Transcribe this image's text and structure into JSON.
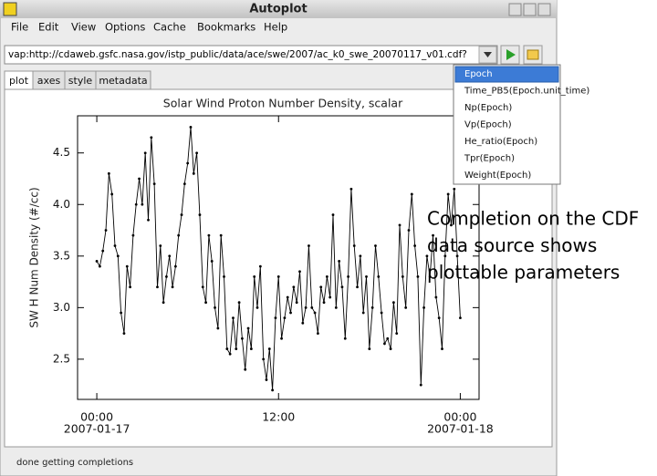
{
  "window": {
    "title": "Autoplot",
    "menu": [
      "File",
      "Edit",
      "View",
      "Options",
      "Cache",
      "Bookmarks",
      "Help"
    ]
  },
  "address": {
    "url": "vap:http://cdaweb.gsfc.nasa.gov/istp_public/data/ace/swe/2007/ac_k0_swe_20070117_v01.cdf?"
  },
  "tabs": [
    "plot",
    "axes",
    "style",
    "metadata"
  ],
  "completions": {
    "items": [
      "Epoch",
      "Time_PB5(Epoch.unit_time)",
      "Np(Epoch)",
      "Vp(Epoch)",
      "He_ratio(Epoch)",
      "Tpr(Epoch)",
      "Weight(Epoch)"
    ],
    "selected": 0
  },
  "chart_data": {
    "type": "line",
    "title": "Solar Wind Proton Number Density, scalar",
    "ylabel": "SW H Num Density (#/cc)",
    "x": [
      0,
      0.2,
      0.4,
      0.6,
      0.8,
      1.0,
      1.2,
      1.4,
      1.6,
      1.8,
      2.0,
      2.2,
      2.4,
      2.6,
      2.8,
      3.0,
      3.2,
      3.4,
      3.6,
      3.8,
      4.0,
      4.2,
      4.4,
      4.6,
      4.8,
      5.0,
      5.2,
      5.4,
      5.6,
      5.8,
      6.0,
      6.2,
      6.4,
      6.6,
      6.8,
      7.0,
      7.2,
      7.4,
      7.6,
      7.8,
      8.0,
      8.2,
      8.4,
      8.6,
      8.8,
      9.0,
      9.2,
      9.4,
      9.6,
      9.8,
      10.0,
      10.2,
      10.4,
      10.6,
      10.8,
      11.0,
      11.2,
      11.4,
      11.6,
      11.8,
      12.0,
      12.2,
      12.4,
      12.6,
      12.8,
      13.0,
      13.2,
      13.4,
      13.6,
      13.8,
      14.0,
      14.2,
      14.4,
      14.6,
      14.8,
      15.0,
      15.2,
      15.4,
      15.6,
      15.8,
      16.0,
      16.2,
      16.4,
      16.6,
      16.8,
      17.0,
      17.2,
      17.4,
      17.6,
      17.8,
      18.0,
      18.2,
      18.4,
      18.6,
      18.8,
      19.0,
      19.2,
      19.4,
      19.6,
      19.8,
      20.0,
      20.2,
      20.4,
      20.6,
      20.8,
      21.0,
      21.2,
      21.4,
      21.6,
      21.8,
      22.0,
      22.2,
      22.4,
      22.6,
      22.8,
      23.0,
      23.2,
      23.4,
      23.6,
      23.8,
      24.0
    ],
    "values": [
      3.45,
      3.4,
      3.55,
      3.75,
      4.3,
      4.1,
      3.6,
      3.5,
      2.95,
      2.75,
      3.4,
      3.2,
      3.7,
      4.0,
      4.25,
      4.0,
      4.5,
      3.85,
      4.65,
      4.2,
      3.2,
      3.6,
      3.05,
      3.3,
      3.5,
      3.2,
      3.4,
      3.7,
      3.9,
      4.2,
      4.4,
      4.75,
      4.3,
      4.5,
      3.9,
      3.2,
      3.05,
      3.7,
      3.45,
      3.0,
      2.8,
      3.7,
      3.3,
      2.6,
      2.55,
      2.9,
      2.6,
      3.05,
      2.7,
      2.4,
      2.8,
      2.6,
      3.3,
      3.0,
      3.4,
      2.5,
      2.3,
      2.6,
      2.2,
      2.9,
      3.3,
      2.7,
      2.9,
      3.1,
      2.95,
      3.2,
      3.05,
      3.35,
      2.85,
      3.0,
      3.6,
      3.0,
      2.95,
      2.75,
      3.2,
      3.05,
      3.3,
      3.1,
      3.9,
      3.0,
      3.45,
      3.2,
      2.7,
      3.3,
      4.15,
      3.6,
      3.2,
      3.5,
      2.95,
      3.3,
      2.6,
      3.0,
      3.6,
      3.3,
      2.95,
      2.65,
      2.7,
      2.6,
      3.05,
      2.75,
      3.8,
      3.3,
      3.0,
      3.75,
      4.1,
      3.6,
      3.3,
      2.25,
      3.0,
      3.5,
      3.3,
      3.7,
      3.1,
      2.9,
      2.6,
      3.5,
      4.1,
      3.8,
      4.15,
      3.5,
      2.9
    ],
    "color": "#000000",
    "xlim": [
      -1.27,
      25.24
    ],
    "ylim": [
      2.11,
      4.86
    ],
    "yticks": [
      2.5,
      {
        "value": 3,
        "label": "3.0"
      },
      3.5,
      {
        "value": 4,
        "label": "4.0"
      },
      4.5
    ],
    "xticks": [
      {
        "value": 0,
        "label": "00:00",
        "date": "2007-01-17"
      },
      {
        "value": 12,
        "label": "12:00"
      },
      {
        "value": 24,
        "label": "00:00",
        "date": "2007-01-18"
      }
    ]
  },
  "annotation": {
    "lines": [
      "Completion on the CDF",
      "data source shows",
      "plottable parameters"
    ]
  },
  "status": "done getting completions"
}
